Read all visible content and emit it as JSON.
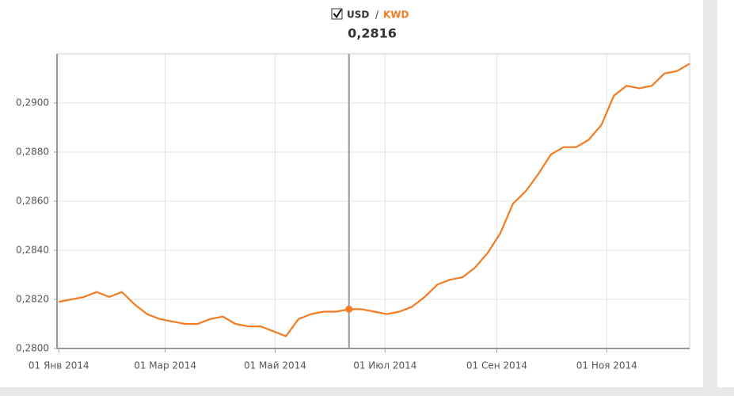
{
  "chart_data": {
    "type": "line",
    "legend": {
      "base": "USD",
      "separator": "/",
      "quote": "KWD"
    },
    "crosshair": {
      "x": "2014-06-11",
      "label": "0,2816"
    },
    "x": [
      "2014-01-01",
      "2014-01-08",
      "2014-01-15",
      "2014-01-22",
      "2014-01-29",
      "2014-02-05",
      "2014-02-12",
      "2014-02-19",
      "2014-02-26",
      "2014-03-05",
      "2014-03-12",
      "2014-03-19",
      "2014-03-26",
      "2014-04-02",
      "2014-04-09",
      "2014-04-16",
      "2014-04-23",
      "2014-04-30",
      "2014-05-07",
      "2014-05-14",
      "2014-05-21",
      "2014-05-28",
      "2014-06-04",
      "2014-06-11",
      "2014-06-18",
      "2014-06-25",
      "2014-07-02",
      "2014-07-09",
      "2014-07-16",
      "2014-07-23",
      "2014-07-30",
      "2014-08-06",
      "2014-08-13",
      "2014-08-20",
      "2014-08-27",
      "2014-09-03",
      "2014-09-10",
      "2014-09-17",
      "2014-09-24",
      "2014-10-01",
      "2014-10-08",
      "2014-10-15",
      "2014-10-22",
      "2014-10-29",
      "2014-11-05",
      "2014-11-12",
      "2014-11-19",
      "2014-11-26",
      "2014-12-03",
      "2014-12-10",
      "2014-12-17"
    ],
    "series": [
      {
        "color": "#f47b20",
        "values": [
          0.2819,
          0.282,
          0.2821,
          0.2823,
          0.2821,
          0.2823,
          0.2818,
          0.2814,
          0.2812,
          0.2811,
          0.281,
          0.281,
          0.2812,
          0.2813,
          0.281,
          0.2809,
          0.2809,
          0.2807,
          0.2805,
          0.2812,
          0.2814,
          0.2815,
          0.2815,
          0.2816,
          0.2816,
          0.2815,
          0.2814,
          0.2815,
          0.2817,
          0.2821,
          0.2826,
          0.2828,
          0.2829,
          0.2833,
          0.2839,
          0.2847,
          0.2859,
          0.2864,
          0.2871,
          0.2879,
          0.2882,
          0.2882,
          0.2885,
          0.2891,
          0.2903,
          0.2907,
          0.2906,
          0.2907,
          0.2912,
          0.2913,
          0.2916
        ]
      }
    ],
    "xlim": [
      "2013-12-31",
      "2014-12-17"
    ],
    "xticks": [
      {
        "value": "2014-01-01",
        "label": "01 Янв 2014"
      },
      {
        "value": "2014-03-01",
        "label": "01 Мар 2014"
      },
      {
        "value": "2014-05-01",
        "label": "01 Май 2014"
      },
      {
        "value": "2014-07-01",
        "label": "01 Июл 2014"
      },
      {
        "value": "2014-09-01",
        "label": "01 Сен 2014"
      },
      {
        "value": "2014-11-01",
        "label": "01 Ноя 2014"
      }
    ],
    "ylim": [
      0.28,
      0.292
    ],
    "yticks": [
      {
        "value": 0.28,
        "label": "0,2800"
      },
      {
        "value": 0.282,
        "label": "0,2820"
      },
      {
        "value": 0.284,
        "label": "0,2840"
      },
      {
        "value": 0.286,
        "label": "0,2860"
      },
      {
        "value": 0.288,
        "label": "0,2880"
      },
      {
        "value": 0.29,
        "label": "0,2900"
      }
    ],
    "grid": true
  }
}
